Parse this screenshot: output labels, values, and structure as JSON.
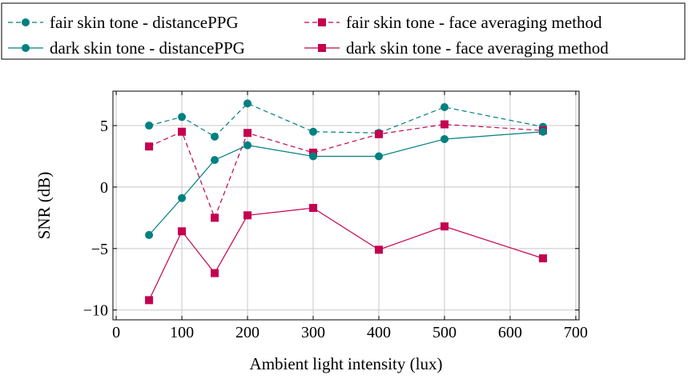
{
  "chart_data": {
    "type": "line",
    "xlabel": "Ambient light intensity (lux)",
    "ylabel": "SNR (dB)",
    "xlim": [
      -5,
      705
    ],
    "ylim": [
      -10.8,
      7.8
    ],
    "xticks": [
      0,
      100,
      200,
      300,
      400,
      500,
      600,
      700
    ],
    "xtick_labels": [
      "0",
      "100",
      "200",
      "300",
      "400",
      "500",
      "600",
      "700"
    ],
    "yticks": [
      -10,
      -5,
      0,
      5
    ],
    "ytick_labels": [
      "−10",
      "−5",
      "0",
      "5"
    ],
    "grid": true,
    "legend_position": "top, outside plot, 2 columns",
    "x": [
      50,
      100,
      150,
      200,
      300,
      400,
      500,
      650
    ],
    "series": [
      {
        "name": "fair skin tone - distancePPG",
        "color": "#008080",
        "marker": "circle",
        "line_style": "dashed",
        "values": [
          5.0,
          5.7,
          4.1,
          6.8,
          4.5,
          4.4,
          6.5,
          4.9
        ]
      },
      {
        "name": "fair skin tone - face averaging method",
        "color": "#c4004f",
        "marker": "square",
        "line_style": "dashed",
        "values": [
          3.3,
          4.5,
          -2.5,
          4.4,
          2.8,
          4.3,
          5.1,
          4.6
        ]
      },
      {
        "name": "dark skin tone - distancePPG",
        "color": "#008080",
        "marker": "circle",
        "line_style": "solid",
        "values": [
          -3.9,
          -0.9,
          2.2,
          3.4,
          2.5,
          2.5,
          3.9,
          4.5
        ]
      },
      {
        "name": "dark skin tone - face averaging method",
        "color": "#c4004f",
        "marker": "square",
        "line_style": "solid",
        "values": [
          -9.2,
          -3.6,
          -7.0,
          -2.3,
          -1.7,
          -5.1,
          -3.2,
          -5.8
        ]
      }
    ]
  }
}
